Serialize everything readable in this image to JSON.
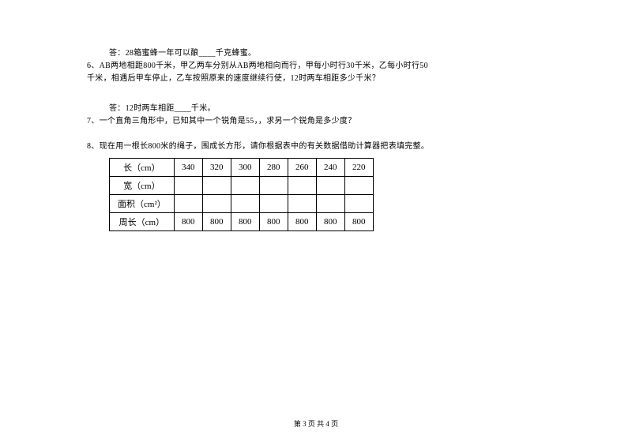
{
  "lines": {
    "l1": "答：28箱蜜蜂一年可以酿____千克蜂蜜。",
    "l2": "6、AB两地相距800千米，甲乙两车分别从AB两地相向而行，甲每小时行30千米，乙每小时行50",
    "l3": "千米，相遇后甲车停止，乙车按照原来的速度继续行使，12时两车相距多少千米？",
    "l4": "答：12时两车相距____千米。",
    "l5": "7、一个直角三角形中，已知其中一个锐角是55，，求另一个锐角是多少度？",
    "l6": "8、现在用一根长800米的绳子，围成长方形，请你根据表中的有关数据借助计算器把表填完整。"
  },
  "table": {
    "headers": {
      "length": "长（cm）",
      "width": "宽（cm）",
      "area": "面积（cm²）",
      "perimeter": "周长（cm）"
    },
    "length_values": [
      "340",
      "320",
      "300",
      "280",
      "260",
      "240",
      "220"
    ],
    "width_values": [
      "",
      "",
      "",
      "",
      "",
      "",
      ""
    ],
    "area_values": [
      "",
      "",
      "",
      "",
      "",
      "",
      ""
    ],
    "perimeter_values": [
      "800",
      "800",
      "800",
      "800",
      "800",
      "800",
      "800"
    ]
  },
  "footer": "第 3 页 共 4 页"
}
